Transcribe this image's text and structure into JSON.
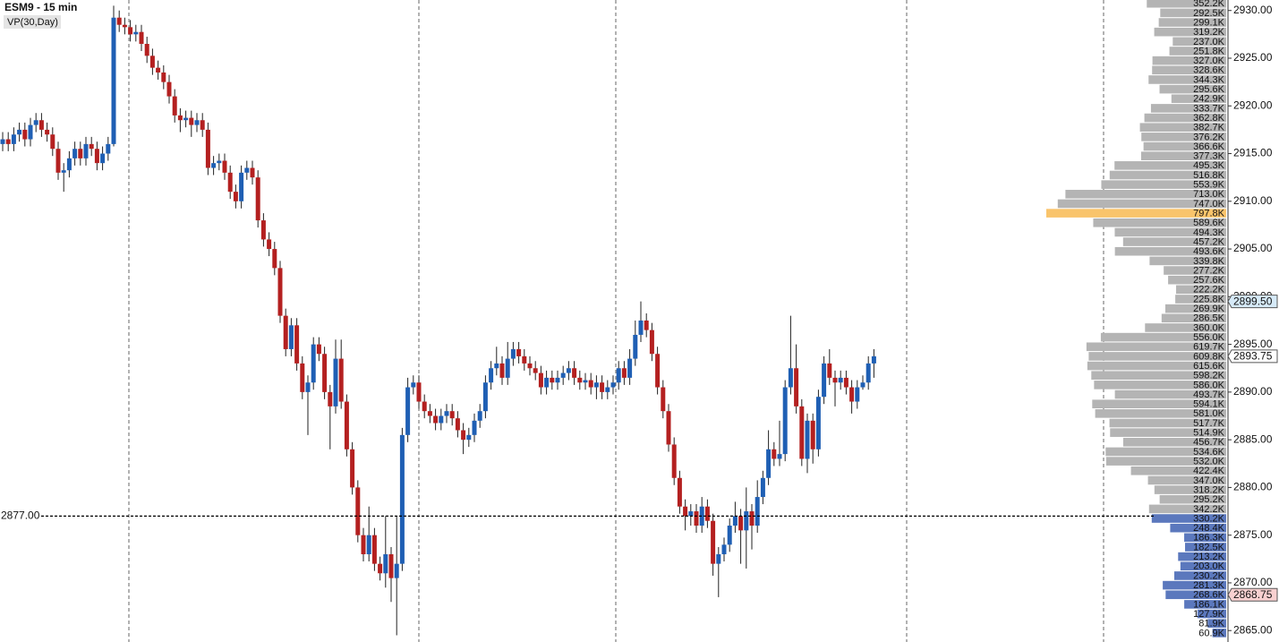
{
  "chart_data": {
    "type": "candlestick",
    "title": "ESM9 - 15 min",
    "study_label": "VP(30,Day)",
    "up_color": "#1f5fb4",
    "down_color": "#b42020",
    "ylim": [
      2863.8,
      2931.1
    ],
    "yticks": [
      {
        "value": 2930,
        "label": "2930.00"
      },
      {
        "value": 2925,
        "label": "2925.00"
      },
      {
        "value": 2920,
        "label": "2920.00"
      },
      {
        "value": 2915,
        "label": "2915.00"
      },
      {
        "value": 2910,
        "label": "2910.00"
      },
      {
        "value": 2905,
        "label": "2905.00"
      },
      {
        "value": 2900,
        "label": "2900.00"
      },
      {
        "value": 2895,
        "label": "2895.00"
      },
      {
        "value": 2890,
        "label": "2890.00"
      },
      {
        "value": 2885,
        "label": "2885.00"
      },
      {
        "value": 2880,
        "label": "2880.00"
      },
      {
        "value": 2875,
        "label": "2875.00"
      },
      {
        "value": 2870,
        "label": "2870.00"
      },
      {
        "value": 2865,
        "label": "2865.00"
      }
    ],
    "reference_line": {
      "value": 2877,
      "label": "2877.00"
    },
    "price_markers": [
      {
        "value": 2899.5,
        "label": "2899.50",
        "color": "#d6eaf8"
      },
      {
        "value": 2893.75,
        "label": "2893.75",
        "color": "#ffffff"
      },
      {
        "value": 2868.75,
        "label": "2868.75",
        "color": "#f8d0d0"
      }
    ],
    "candles": [
      [
        2916,
        2917.25,
        2915.25,
        2916.5
      ],
      [
        2916.5,
        2917.25,
        2915.25,
        2916
      ],
      [
        2916,
        2917.75,
        2915.25,
        2917
      ],
      [
        2917,
        2918.25,
        2916.25,
        2917.5
      ],
      [
        2917.5,
        2918.25,
        2915.75,
        2916.5
      ],
      [
        2916.5,
        2918.75,
        2915.75,
        2918
      ],
      [
        2918,
        2919.25,
        2917.25,
        2918.5
      ],
      [
        2918.5,
        2919.25,
        2916.75,
        2917.5
      ],
      [
        2917.5,
        2918.25,
        2916.25,
        2917
      ],
      [
        2917,
        2917.75,
        2914.75,
        2915.5
      ],
      [
        2915.5,
        2916.25,
        2912.25,
        2913
      ],
      [
        2913,
        2914,
        2911,
        2913.25
      ],
      [
        2913.25,
        2915.25,
        2912.5,
        2914.5
      ],
      [
        2914.5,
        2916.25,
        2913.75,
        2915.5
      ],
      [
        2915.5,
        2916.25,
        2913.75,
        2914.5
      ],
      [
        2914.5,
        2916.75,
        2913.75,
        2916
      ],
      [
        2916,
        2916.75,
        2914.75,
        2915.5
      ],
      [
        2915.5,
        2916.25,
        2913.25,
        2914
      ],
      [
        2914,
        2915.75,
        2913.25,
        2915
      ],
      [
        2915,
        2916.75,
        2914.25,
        2916
      ],
      [
        2916,
        2930.5,
        2915.75,
        2929.25
      ],
      [
        2929.25,
        2930,
        2927.75,
        2928.5
      ],
      [
        2928.5,
        2929.25,
        2927.5,
        2928.25
      ],
      [
        2928.25,
        2929,
        2926.75,
        2927.5
      ],
      [
        2927.5,
        2928.5,
        2926.75,
        2927.75
      ],
      [
        2927.75,
        2928.5,
        2925.75,
        2926.5
      ],
      [
        2926.5,
        2927.25,
        2924.5,
        2925.25
      ],
      [
        2925.25,
        2926,
        2923.25,
        2924
      ],
      [
        2924,
        2924.75,
        2922.75,
        2923.5
      ],
      [
        2923.5,
        2924.25,
        2921.75,
        2922.5
      ],
      [
        2922.5,
        2923.25,
        2920.25,
        2921
      ],
      [
        2921,
        2921.75,
        2918.25,
        2919
      ],
      [
        2919,
        2919.75,
        2917.25,
        2918.5
      ],
      [
        2918.5,
        2919.5,
        2917.75,
        2918.75
      ],
      [
        2918.75,
        2919.5,
        2916.75,
        2918
      ],
      [
        2918,
        2919.25,
        2917.25,
        2918.5
      ],
      [
        2918.5,
        2919.25,
        2916.75,
        2917.5
      ],
      [
        2917.5,
        2918.25,
        2912.75,
        2913.5
      ],
      [
        2913.5,
        2914.75,
        2912.75,
        2914
      ],
      [
        2914,
        2915,
        2913.25,
        2914.25
      ],
      [
        2914.25,
        2915,
        2912.25,
        2913
      ],
      [
        2913,
        2913.75,
        2910.25,
        2911
      ],
      [
        2911,
        2911.75,
        2909.25,
        2910
      ],
      [
        2910,
        2913.75,
        2909.25,
        2913
      ],
      [
        2913,
        2914.25,
        2912.25,
        2913.5
      ],
      [
        2913.5,
        2914.25,
        2911.75,
        2912.5
      ],
      [
        2912.5,
        2913.25,
        2907.25,
        2908
      ],
      [
        2908,
        2908.75,
        2905.25,
        2906
      ],
      [
        2906,
        2906.75,
        2904.25,
        2905
      ],
      [
        2905,
        2905.75,
        2902.25,
        2903
      ],
      [
        2903,
        2903.75,
        2897.25,
        2898
      ],
      [
        2898,
        2898.75,
        2893.75,
        2894.5
      ],
      [
        2894.5,
        2897.75,
        2893.75,
        2897
      ],
      [
        2897,
        2897.75,
        2892.25,
        2893
      ],
      [
        2893,
        2893.75,
        2889.25,
        2890
      ],
      [
        2890,
        2891.75,
        2885.5,
        2891
      ],
      [
        2891,
        2895.75,
        2890.25,
        2895
      ],
      [
        2895,
        2895.75,
        2893.25,
        2894
      ],
      [
        2894,
        2894.75,
        2889.25,
        2890
      ],
      [
        2890,
        2890.75,
        2884,
        2888.5
      ],
      [
        2888.5,
        2895.5,
        2887.75,
        2893.5
      ],
      [
        2893.5,
        2895.5,
        2888.25,
        2889
      ],
      [
        2889,
        2889.75,
        2883.25,
        2884
      ],
      [
        2884,
        2884.75,
        2879.25,
        2880
      ],
      [
        2880,
        2880.75,
        2874.25,
        2875
      ],
      [
        2875,
        2875.75,
        2872.25,
        2873
      ],
      [
        2873,
        2878,
        2872.25,
        2875
      ],
      [
        2875,
        2875.75,
        2871.25,
        2872
      ],
      [
        2872,
        2872.75,
        2870.25,
        2871
      ],
      [
        2871,
        2877,
        2869.5,
        2873
      ],
      [
        2873,
        2873.75,
        2868,
        2870.5
      ],
      [
        2870.5,
        2877,
        2864.5,
        2872
      ],
      [
        2872,
        2886.25,
        2871.25,
        2885.5
      ],
      [
        2885.5,
        2891.5,
        2884.75,
        2890.5
      ],
      [
        2890.5,
        2891.75,
        2889.75,
        2891
      ],
      [
        2891,
        2891.75,
        2888.25,
        2889
      ],
      [
        2889,
        2889.75,
        2887.25,
        2888
      ],
      [
        2888,
        2888.75,
        2886.75,
        2887.5
      ],
      [
        2887.5,
        2888.25,
        2886,
        2886.75
      ],
      [
        2886.75,
        2888.25,
        2886,
        2887.5
      ],
      [
        2887.5,
        2888.75,
        2886.75,
        2888
      ],
      [
        2888,
        2888.75,
        2886.5,
        2887.25
      ],
      [
        2887.25,
        2888,
        2885.25,
        2886
      ],
      [
        2886,
        2886.75,
        2883.5,
        2885
      ],
      [
        2885,
        2886.25,
        2884.25,
        2885.5
      ],
      [
        2885.5,
        2887.75,
        2884.75,
        2887
      ],
      [
        2887,
        2888.75,
        2886.25,
        2888
      ],
      [
        2888,
        2891.75,
        2887.25,
        2891
      ],
      [
        2891,
        2893.25,
        2890.25,
        2892.5
      ],
      [
        2892.5,
        2894.75,
        2891.75,
        2893
      ],
      [
        2893,
        2893.75,
        2890.75,
        2891.5
      ],
      [
        2891.5,
        2895.25,
        2890.75,
        2893.5
      ],
      [
        2893.5,
        2895.25,
        2892.75,
        2894.5
      ],
      [
        2894.5,
        2895.25,
        2893,
        2893.75
      ],
      [
        2893.75,
        2894.5,
        2892.25,
        2893
      ],
      [
        2893,
        2893.75,
        2891.75,
        2892.5
      ],
      [
        2892.5,
        2893.25,
        2891.25,
        2892
      ],
      [
        2892,
        2892.75,
        2889.75,
        2890.5
      ],
      [
        2890.5,
        2892.25,
        2889.75,
        2891.5
      ],
      [
        2891.5,
        2892.25,
        2890.25,
        2891
      ],
      [
        2891,
        2892.25,
        2890.25,
        2891.5
      ],
      [
        2891.5,
        2892.75,
        2890.75,
        2892
      ],
      [
        2892,
        2893.25,
        2891.25,
        2892.5
      ],
      [
        2892.5,
        2893.25,
        2890.75,
        2891.5
      ],
      [
        2891.5,
        2892.25,
        2890.25,
        2891
      ],
      [
        2891,
        2892,
        2890.25,
        2891.25
      ],
      [
        2891.25,
        2892,
        2889.75,
        2890.5
      ],
      [
        2890.5,
        2891.75,
        2889.25,
        2891
      ],
      [
        2891,
        2891.75,
        2889.25,
        2890
      ],
      [
        2890,
        2891.25,
        2889.25,
        2890.5
      ],
      [
        2890.5,
        2891.75,
        2889.75,
        2891
      ],
      [
        2891,
        2893.25,
        2890.25,
        2892.5
      ],
      [
        2892.5,
        2893.25,
        2890.75,
        2891.5
      ],
      [
        2891.5,
        2894.5,
        2890.75,
        2893.5
      ],
      [
        2893.5,
        2897.5,
        2892.75,
        2896
      ],
      [
        2896,
        2899.5,
        2895.25,
        2897.5
      ],
      [
        2897.5,
        2898.25,
        2895.75,
        2896.5
      ],
      [
        2896.5,
        2897.25,
        2893.25,
        2894
      ],
      [
        2894,
        2894.75,
        2889.75,
        2890.5
      ],
      [
        2890.5,
        2891.25,
        2887.25,
        2888
      ],
      [
        2888,
        2888.75,
        2883.75,
        2884.5
      ],
      [
        2884.5,
        2885.25,
        2880.25,
        2881
      ],
      [
        2881,
        2881.75,
        2877.25,
        2878
      ],
      [
        2878,
        2878.75,
        2875.5,
        2877
      ],
      [
        2877,
        2878.25,
        2876,
        2877.5
      ],
      [
        2877.5,
        2878.25,
        2875.25,
        2876
      ],
      [
        2876,
        2879,
        2875.25,
        2878
      ],
      [
        2878,
        2878.75,
        2875.75,
        2876.5
      ],
      [
        2876.5,
        2877.25,
        2870.75,
        2872
      ],
      [
        2872,
        2873.75,
        2868.5,
        2873
      ],
      [
        2873,
        2874.75,
        2872.25,
        2874
      ],
      [
        2874,
        2876.75,
        2873.25,
        2876
      ],
      [
        2876,
        2878.5,
        2875.25,
        2877
      ],
      [
        2877,
        2877.75,
        2872,
        2875.5
      ],
      [
        2875.5,
        2880,
        2871.5,
        2877.5
      ],
      [
        2877.5,
        2878.25,
        2873.5,
        2876
      ],
      [
        2876,
        2880.75,
        2875.25,
        2879
      ],
      [
        2879,
        2881.75,
        2878.25,
        2881
      ],
      [
        2881,
        2886,
        2880.25,
        2884
      ],
      [
        2884,
        2884.75,
        2882.25,
        2883
      ],
      [
        2883,
        2887,
        2882.25,
        2883.5
      ],
      [
        2883.5,
        2891.25,
        2882.75,
        2890.5
      ],
      [
        2890.5,
        2898,
        2889.75,
        2892.5
      ],
      [
        2892.5,
        2895,
        2887.75,
        2888.5
      ],
      [
        2888.5,
        2889.25,
        2882.25,
        2883
      ],
      [
        2883,
        2887.75,
        2881.5,
        2887
      ],
      [
        2887,
        2887.75,
        2882.5,
        2884
      ],
      [
        2884,
        2890.25,
        2883.25,
        2889.5
      ],
      [
        2889.5,
        2893.75,
        2888.75,
        2893
      ],
      [
        2893,
        2894.5,
        2890.75,
        2891.5
      ],
      [
        2891.5,
        2892.25,
        2888.5,
        2891
      ],
      [
        2891,
        2892.25,
        2890.25,
        2891.5
      ],
      [
        2891.5,
        2892.25,
        2889.75,
        2890.5
      ],
      [
        2890.5,
        2891.25,
        2887.75,
        2889
      ],
      [
        2889,
        2891.25,
        2888.25,
        2890.5
      ],
      [
        2890.5,
        2891.75,
        2890.25,
        2891
      ],
      [
        2891,
        2893.75,
        2890.25,
        2893
      ],
      [
        2893,
        2894.5,
        2891.5,
        2893.75
      ]
    ],
    "profile": {
      "color": "#b4b4b4",
      "poc_color": "#f9c46b",
      "below_color": "#5b78bd",
      "levels": [
        2930.75,
        2929.75,
        2928.75,
        2927.75,
        2926.75,
        2925.75,
        2924.75,
        2923.75,
        2922.75,
        2921.75,
        2920.75,
        2919.75,
        2918.75,
        2917.75,
        2916.75,
        2915.75,
        2914.75,
        2913.75,
        2912.75,
        2911.75,
        2910.75,
        2909.75,
        2908.75,
        2907.75,
        2906.75,
        2905.75,
        2904.75,
        2903.75,
        2902.75,
        2901.75,
        2900.75,
        2899.75,
        2898.75,
        2897.75,
        2896.75,
        2895.75,
        2894.75,
        2893.75,
        2892.75,
        2891.75,
        2890.75,
        2889.75,
        2888.75,
        2887.75,
        2886.75,
        2885.75,
        2884.75,
        2883.75,
        2882.75,
        2881.75,
        2880.75,
        2879.75,
        2878.75,
        2877.75,
        2876.75,
        2875.75,
        2874.75,
        2873.75,
        2872.75,
        2871.75,
        2870.75,
        2869.75,
        2868.75,
        2867.75,
        2866.75,
        2865.75,
        2864.75
      ],
      "values": [
        352200,
        292500,
        299100,
        319200,
        237000,
        251800,
        327000,
        328600,
        344300,
        295600,
        242900,
        333700,
        362800,
        382700,
        376200,
        366600,
        377300,
        495300,
        516800,
        553900,
        713000,
        747000,
        797800,
        589600,
        494300,
        457200,
        493600,
        339800,
        277200,
        257600,
        222200,
        225800,
        269900,
        286500,
        360000,
        556000,
        619700,
        609800,
        615600,
        598200,
        586000,
        493700,
        594100,
        581000,
        517700,
        514900,
        456700,
        534600,
        532000,
        422400,
        347000,
        318200,
        295200,
        342200,
        330200,
        248400,
        186300,
        182500,
        213200,
        203000,
        230200,
        281300,
        268600,
        186100,
        127900,
        81900,
        60900
      ],
      "value_labels": [
        "352.2K",
        "292.5K",
        "299.1K",
        "319.2K",
        "237.0K",
        "251.8K",
        "327.0K",
        "328.6K",
        "344.3K",
        "295.6K",
        "242.9K",
        "333.7K",
        "362.8K",
        "382.7K",
        "376.2K",
        "366.6K",
        "377.3K",
        "495.3K",
        "516.8K",
        "553.9K",
        "713.0K",
        "747.0K",
        "797.8K",
        "589.6K",
        "494.3K",
        "457.2K",
        "493.6K",
        "339.8K",
        "277.2K",
        "257.6K",
        "222.2K",
        "225.8K",
        "269.9K",
        "286.5K",
        "360.0K",
        "556.0K",
        "619.7K",
        "609.8K",
        "615.6K",
        "598.2K",
        "586.0K",
        "493.7K",
        "594.1K",
        "581.0K",
        "517.7K",
        "514.9K",
        "456.7K",
        "534.6K",
        "532.0K",
        "422.4K",
        "347.0K",
        "318.2K",
        "295.2K",
        "342.2K",
        "330.2K",
        "248.4K",
        "186.3K",
        "182.5K",
        "213.2K",
        "203.0K",
        "230.2K",
        "281.3K",
        "268.6K",
        "186.1K",
        "127.9K",
        "81.9K",
        "60.9K"
      ]
    }
  }
}
